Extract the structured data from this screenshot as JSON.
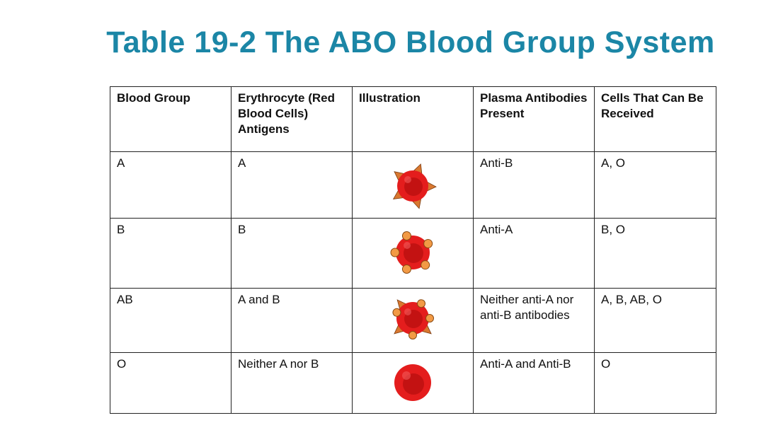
{
  "title": "Table 19-2 The ABO Blood Group System",
  "colors": {
    "title": "#1b86a6",
    "cell_red": "#e41d1d",
    "antigen_a": "#d97830",
    "antigen_b": "#f29a45"
  },
  "table": {
    "headers": [
      "Blood Group",
      "Erythrocyte (Red Blood Cells) Antigens",
      "Illustration",
      "Plasma Antibodies Present",
      "Cells That Can Be Received"
    ],
    "rows": [
      {
        "blood_group": "A",
        "antigens": "A",
        "illustration": "red-cell-with-triangle-antigens",
        "antibodies": "Anti-B",
        "received": "A, O"
      },
      {
        "blood_group": "B",
        "antigens": "B",
        "illustration": "red-cell-with-circle-antigens",
        "antibodies": "Anti-A",
        "received": "B, O"
      },
      {
        "blood_group": "AB",
        "antigens": "A and B",
        "illustration": "red-cell-with-triangle-and-circle-antigens",
        "antibodies": "Neither anti-A nor anti-B antibodies",
        "received": "A, B, AB, O"
      },
      {
        "blood_group": "O",
        "antigens": "Neither A nor B",
        "illustration": "plain-red-cell",
        "antibodies": "Anti-A and Anti-B",
        "received": "O"
      }
    ]
  }
}
